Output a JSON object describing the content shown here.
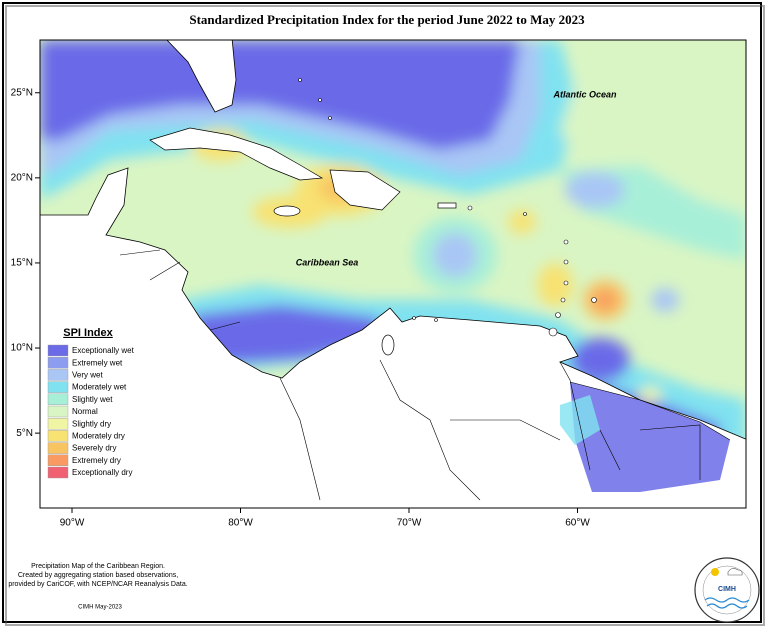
{
  "title": "Standardized Precipitation Index for the period June 2022 to May 2023",
  "map": {
    "xlim": [
      -91.9,
      -50
    ],
    "ylim": [
      0.6,
      28.1
    ],
    "xticks": [
      {
        "value": -90,
        "label": "90°W"
      },
      {
        "value": -80,
        "label": "80°W"
      },
      {
        "value": -70,
        "label": "70°W"
      },
      {
        "value": -60,
        "label": "60°W"
      }
    ],
    "yticks": [
      {
        "value": 25,
        "label": "25°N"
      },
      {
        "value": 20,
        "label": "20°N"
      },
      {
        "value": 15,
        "label": "15°N"
      },
      {
        "value": 10,
        "label": "10°N"
      },
      {
        "value": 5,
        "label": "5°N"
      }
    ],
    "places": [
      "Atlantic Ocean",
      "Caribbean Sea"
    ]
  },
  "legend": {
    "title": "SPI Index",
    "entries": [
      {
        "label": "Exceptionally wet",
        "color": "#6b6be8"
      },
      {
        "label": "Extremely wet",
        "color": "#8c9df0"
      },
      {
        "label": "Very wet",
        "color": "#a9c6f5"
      },
      {
        "label": "Moderately wet",
        "color": "#80e2f0"
      },
      {
        "label": "Slightly wet",
        "color": "#a8efd8"
      },
      {
        "label": "Normal",
        "color": "#d9f5c4"
      },
      {
        "label": "Slightly dry",
        "color": "#f0f5a4"
      },
      {
        "label": "Moderately dry",
        "color": "#f8e272"
      },
      {
        "label": "Severely dry",
        "color": "#f8c462"
      },
      {
        "label": "Extremely dry",
        "color": "#f89a62"
      },
      {
        "label": "Exceptionally dry",
        "color": "#f06272"
      }
    ]
  },
  "footer": {
    "lines": [
      "Precipitation Map of the Caribbean Region.",
      "Created by aggregating station based observations,",
      "provided by CariCOF, with NCEP/NCAR Reanalysis Data."
    ],
    "credit": "CIMH May-2023"
  },
  "logo": "CIMH"
}
